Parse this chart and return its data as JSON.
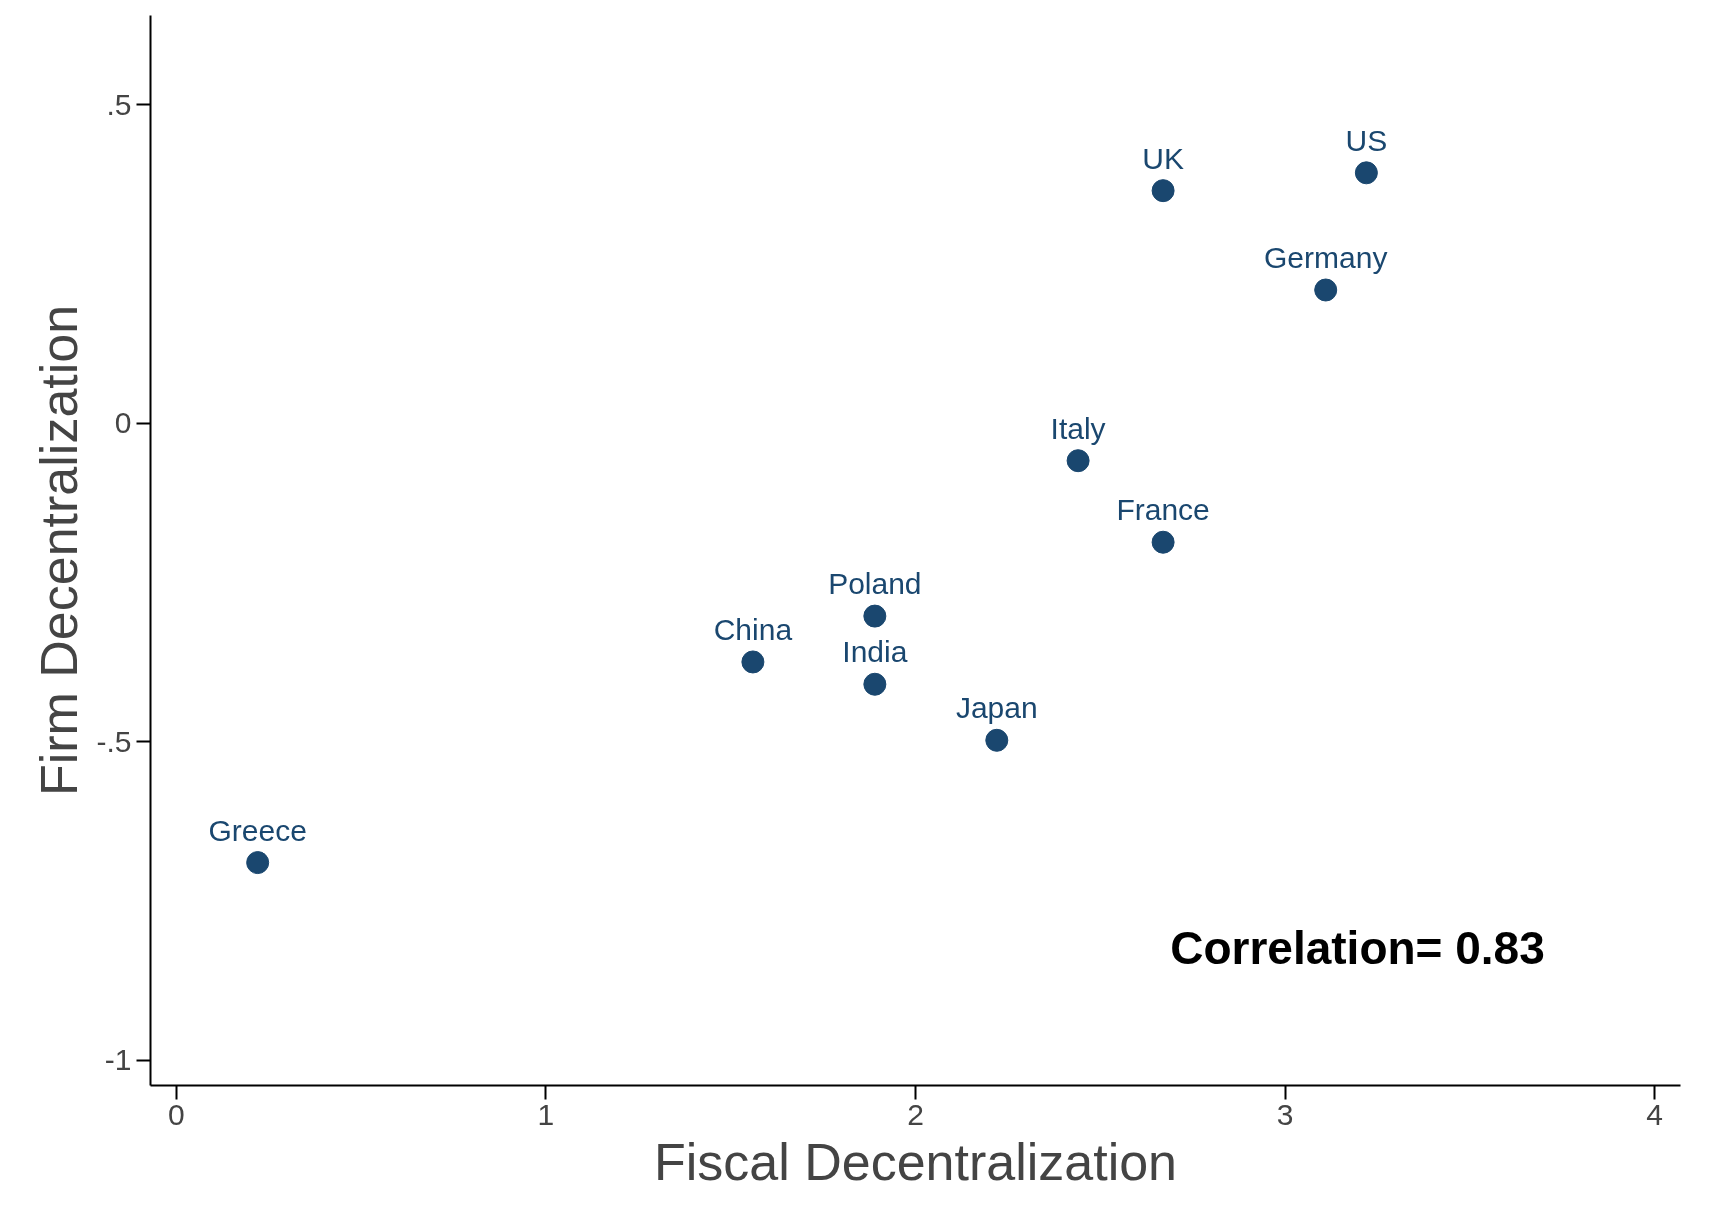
{
  "chart_data": {
    "type": "scatter",
    "xlabel": "Fiscal Decentralization",
    "ylabel": "Firm Decentralization",
    "x": [
      0.22,
      1.56,
      1.89,
      1.89,
      2.22,
      2.44,
      2.67,
      2.67,
      3.22,
      3.11
    ],
    "series": [
      {
        "color": "#1a476f",
        "values": [
          -0.69,
          -0.375,
          -0.303,
          -0.41,
          -0.498,
          -0.059,
          -0.187,
          0.365,
          0.393,
          0.209
        ]
      }
    ],
    "marker": "circle",
    "grid": false,
    "xlim": [
      -0.07,
      4.07
    ],
    "ylim": [
      -1.04,
      0.64
    ],
    "xticks": [
      0,
      1,
      2,
      3,
      4
    ],
    "yticks": [
      {
        "value": 0.5,
        "label": ".5"
      },
      0,
      {
        "value": -0.5,
        "label": "-.5"
      },
      {
        "value": -1,
        "label": "-1"
      }
    ],
    "annotations": [
      {
        "text": "Greece",
        "x": 0.22,
        "y": -0.69
      },
      {
        "text": "China",
        "x": 1.56,
        "y": -0.375
      },
      {
        "text": "Poland",
        "x": 1.89,
        "y": -0.303
      },
      {
        "text": "India",
        "x": 1.89,
        "y": -0.41
      },
      {
        "text": "Japan",
        "x": 2.22,
        "y": -0.498
      },
      {
        "text": "Italy",
        "x": 2.44,
        "y": -0.059
      },
      {
        "text": "France",
        "x": 2.67,
        "y": -0.187
      },
      {
        "text": "UK",
        "x": 2.67,
        "y": 0.365
      },
      {
        "text": "US",
        "x": 3.22,
        "y": 0.393
      },
      {
        "text": "Germany",
        "x": 3.11,
        "y": 0.209
      },
      "Correlation= 0.83"
    ]
  }
}
